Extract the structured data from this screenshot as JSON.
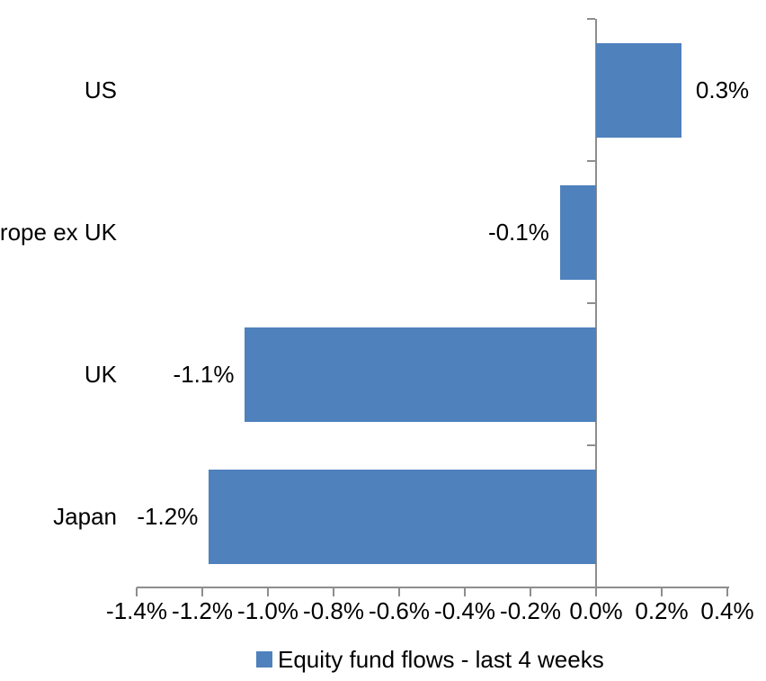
{
  "chart_data": {
    "type": "bar",
    "orientation": "horizontal",
    "title": "",
    "xlabel": "",
    "ylabel": "",
    "categories": [
      "US",
      "Europe ex UK",
      "UK",
      "Japan"
    ],
    "values": [
      0.3,
      -0.1,
      -1.1,
      -1.2
    ],
    "plot_values": [
      0.26,
      -0.11,
      -1.07,
      -1.18
    ],
    "data_labels": [
      "0.3%",
      "-0.1%",
      "-1.1%",
      "-1.2%"
    ],
    "x_ticks": [
      -1.4,
      -1.2,
      -1.0,
      -0.8,
      -0.6,
      -0.4,
      -0.2,
      0.0,
      0.2,
      0.4
    ],
    "x_tick_labels": [
      "-1.4%",
      "-1.2%",
      "-1.0%",
      "-0.8%",
      "-0.6%",
      "-0.4%",
      "-0.2%",
      "0.0%",
      "0.2%",
      "0.4%"
    ],
    "xlim": [
      -1.4,
      0.4
    ],
    "grid": false,
    "legend": {
      "label": "Equity fund flows - last 4 weeks",
      "position": "bottom"
    },
    "colors": {
      "bar": "#4F81BD",
      "axis": "#8E8E8E",
      "text": "#000000",
      "background": "#FFFFFF"
    }
  }
}
